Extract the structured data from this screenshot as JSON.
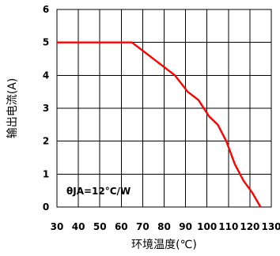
{
  "chart_data": {
    "type": "line",
    "title": "",
    "xlabel": "环境温度(℃)",
    "ylabel": "输出电流(A)",
    "xlim": [
      30,
      130
    ],
    "ylim": [
      0,
      6
    ],
    "x_ticks": [
      30,
      40,
      50,
      60,
      70,
      80,
      90,
      100,
      110,
      120,
      130
    ],
    "y_ticks": [
      0,
      1,
      2,
      3,
      4,
      5,
      6
    ],
    "grid": true,
    "annotation": "θJA=12°C/W",
    "series": [
      {
        "color": "#ff0000",
        "x": [
          30,
          65,
          85,
          91,
          96,
          101,
          105,
          109,
          113,
          117,
          121,
          125
        ],
        "y": [
          5,
          5,
          4,
          3.5,
          3.25,
          2.75,
          2.5,
          2.0,
          1.3,
          0.8,
          0.45,
          0
        ]
      }
    ]
  }
}
